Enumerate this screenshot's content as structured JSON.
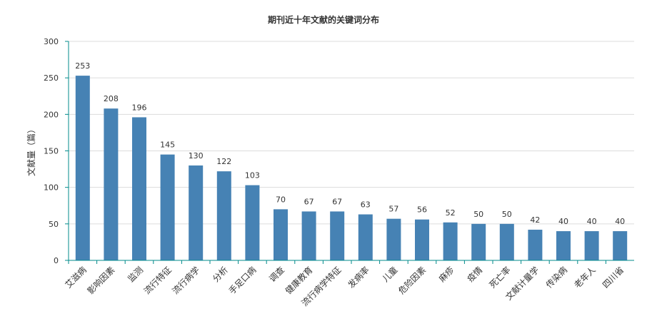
{
  "chart_data": {
    "type": "bar",
    "title": "期刊近十年文献的关键词分布",
    "ylabel": "文献量（篇）",
    "xlabel": "",
    "ylim": [
      0,
      300
    ],
    "yticks": [
      0,
      50,
      100,
      150,
      200,
      250,
      300
    ],
    "grid": true,
    "bar_color": "#4682b4",
    "grid_color": "#dcdcdc",
    "axis_color": "#008b8b",
    "categories": [
      "艾滋病",
      "影响因素",
      "监测",
      "流行特征",
      "流行病学",
      "分析",
      "手足口病",
      "调查",
      "健康教育",
      "流行病学特征",
      "发病率",
      "儿童",
      "危险因素",
      "麻疹",
      "疫情",
      "死亡率",
      "文献计量学",
      "传染病",
      "老年人",
      "四川省"
    ],
    "values": [
      253,
      208,
      196,
      145,
      130,
      122,
      103,
      70,
      67,
      67,
      63,
      57,
      56,
      52,
      50,
      50,
      42,
      40,
      40,
      40
    ]
  }
}
